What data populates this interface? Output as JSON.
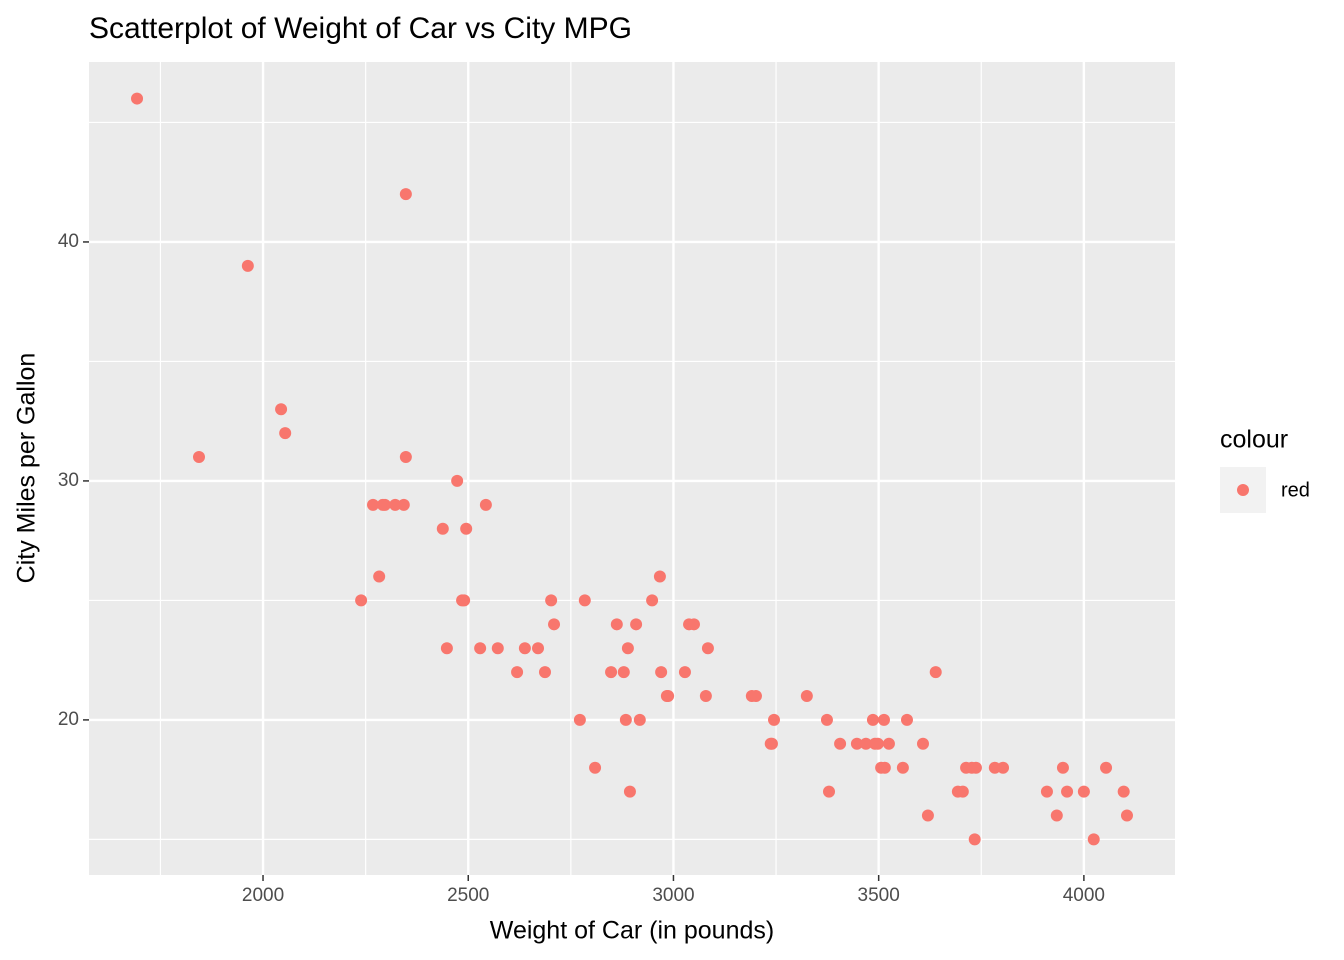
{
  "chart_data": {
    "type": "scatter",
    "title": "Scatterplot of Weight of Car vs City MPG",
    "xlabel": "Weight of Car (in pounds)",
    "ylabel": "City Miles per Gallon",
    "legend_title": "colour",
    "legend_position": "right",
    "grid": true,
    "xlim": [
      1576,
      4222
    ],
    "ylim": [
      13.51,
      47.53
    ],
    "xticks": [
      2000,
      2500,
      3000,
      3500,
      4000
    ],
    "yticks": [
      20,
      30,
      40
    ],
    "x_minor_ticks": [
      1750,
      2250,
      2750,
      3250,
      3750
    ],
    "y_minor_ticks": [
      15,
      25,
      35,
      45
    ],
    "series": [
      {
        "name": "red",
        "color": "#F8766D",
        "x": [
          1693,
          1844,
          1963,
          2044,
          2054,
          2239,
          2268,
          2283,
          2292,
          2297,
          2322,
          2343,
          2348,
          2348,
          2438,
          2448,
          2473,
          2485,
          2490,
          2495,
          2529,
          2543,
          2572,
          2619,
          2638,
          2670,
          2687,
          2702,
          2709,
          2772,
          2784,
          2809,
          2848,
          2862,
          2879,
          2884,
          2889,
          2894,
          2909,
          2918,
          2948,
          2967,
          2970,
          2984,
          2987,
          3028,
          3038,
          3050,
          3084,
          3079,
          3191,
          3201,
          3237,
          3240,
          3245,
          3325,
          3374,
          3379,
          3406,
          3447,
          3469,
          3486,
          3491,
          3498,
          3506,
          3513,
          3515,
          3525,
          3559,
          3569,
          3608,
          3620,
          3639,
          3693,
          3705,
          3713,
          3727,
          3737,
          3734,
          3783,
          3803,
          3910,
          3934,
          3949,
          3959,
          4000,
          4024,
          4054,
          4097,
          4105
        ],
        "y": [
          46,
          31,
          39,
          33,
          32,
          25,
          29,
          26,
          29,
          29,
          29,
          29,
          42,
          31,
          28,
          23,
          30,
          25,
          25,
          28,
          23,
          29,
          23,
          22,
          23,
          23,
          22,
          25,
          24,
          20,
          25,
          18,
          22,
          24,
          22,
          20,
          23,
          17,
          24,
          20,
          25,
          26,
          22,
          21,
          21,
          22,
          24,
          24,
          23,
          21,
          21,
          21,
          19,
          19,
          20,
          21,
          20,
          17,
          19,
          19,
          19,
          20,
          19,
          19,
          18,
          20,
          18,
          19,
          18,
          20,
          19,
          16,
          22,
          17,
          17,
          18,
          18,
          18,
          15,
          18,
          18,
          17,
          16,
          18,
          17,
          17,
          15,
          18,
          17,
          16
        ]
      }
    ]
  }
}
